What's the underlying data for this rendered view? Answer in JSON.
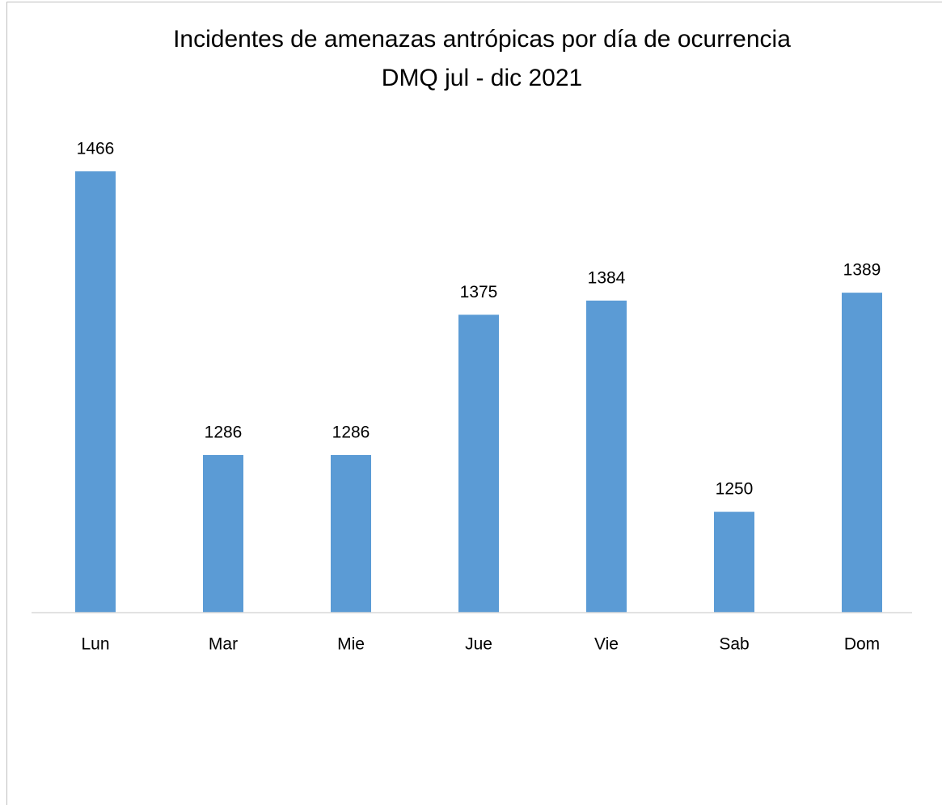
{
  "chart_data": {
    "type": "bar",
    "title": "Incidentes de amenazas antrópicas por día de ocurrencia",
    "subtitle": "DMQ jul - dic 2021",
    "categories": [
      "Lun",
      "Mar",
      "Mie",
      "Jue",
      "Vie",
      "Sab",
      "Dom"
    ],
    "values": [
      1466,
      1286,
      1286,
      1375,
      1384,
      1250,
      1389
    ],
    "color": "#5b9bd5",
    "ylim": [
      1186,
      1500
    ]
  }
}
